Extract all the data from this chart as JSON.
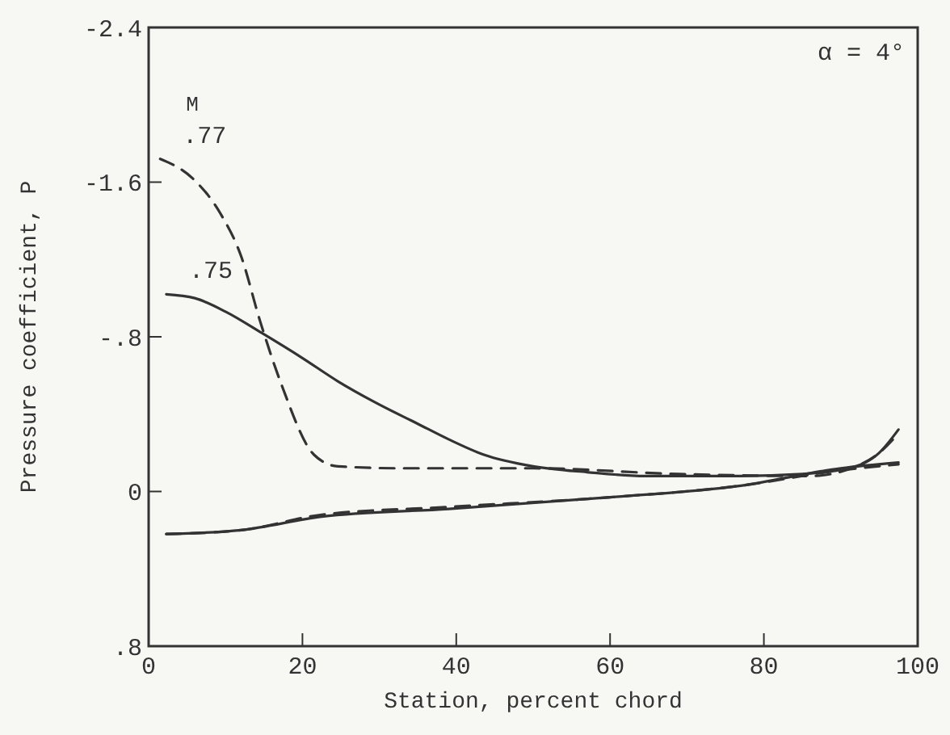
{
  "chart_data": {
    "type": "line",
    "xlabel": "Station, percent chord",
    "ylabel": "Pressure coefficient, P",
    "legend_title": "M",
    "annotations": [
      "α = 4°"
    ],
    "xlim": [
      0,
      100
    ],
    "ylim": [
      0.8,
      -2.4
    ],
    "xticks": [
      0,
      20,
      40,
      60,
      80,
      100
    ],
    "yticks": [
      -2.4,
      -1.6,
      {
        "value": -0.8,
        "label": "-.8"
      },
      0,
      {
        "value": 0.8,
        "label": ".8"
      }
    ],
    "grid": false,
    "marker": "none",
    "series": [
      {
        "name": ".75",
        "color": "#333333",
        "line_style": "solid",
        "x": [
          2.3,
          6,
          10,
          14.7,
          20,
          24.6,
          29.5,
          35,
          39,
          43.6,
          50,
          57,
          64.6,
          77,
          85,
          91,
          95,
          97.5
        ],
        "values": [
          -1.02,
          -1.0,
          -0.93,
          -0.82,
          -0.69,
          -0.57,
          -0.46,
          -0.35,
          -0.27,
          -0.19,
          -0.13,
          -0.1,
          -0.08,
          -0.08,
          -0.09,
          -0.12,
          -0.2,
          -0.32
        ]
      },
      {
        "name": ".77",
        "color": "#333333",
        "line_style": "dashed",
        "x": [
          1.5,
          5.7,
          9.3,
          12,
          14.5,
          17.3,
          21.5,
          24.6,
          33,
          50,
          69,
          86,
          92,
          95,
          97.5
        ],
        "values": [
          -1.72,
          -1.62,
          -1.44,
          -1.22,
          -0.88,
          -0.55,
          -0.19,
          -0.13,
          -0.12,
          -0.12,
          -0.09,
          -0.08,
          -0.13,
          -0.2,
          -0.3
        ]
      },
      {
        "color": "#333333",
        "line_style": "solid",
        "x": [
          2.3,
          12,
          22.5,
          39,
          60,
          77,
          90,
          97.5
        ],
        "values": [
          0.22,
          0.2,
          0.13,
          0.09,
          0.03,
          -0.03,
          -0.12,
          -0.15
        ]
      },
      {
        "color": "#333333",
        "line_style": "dashed",
        "x": [
          2.3,
          12,
          22.5,
          39,
          60,
          77,
          90,
          97.5
        ],
        "values": [
          0.22,
          0.2,
          0.12,
          0.08,
          0.03,
          -0.03,
          -0.11,
          -0.14
        ]
      }
    ]
  }
}
